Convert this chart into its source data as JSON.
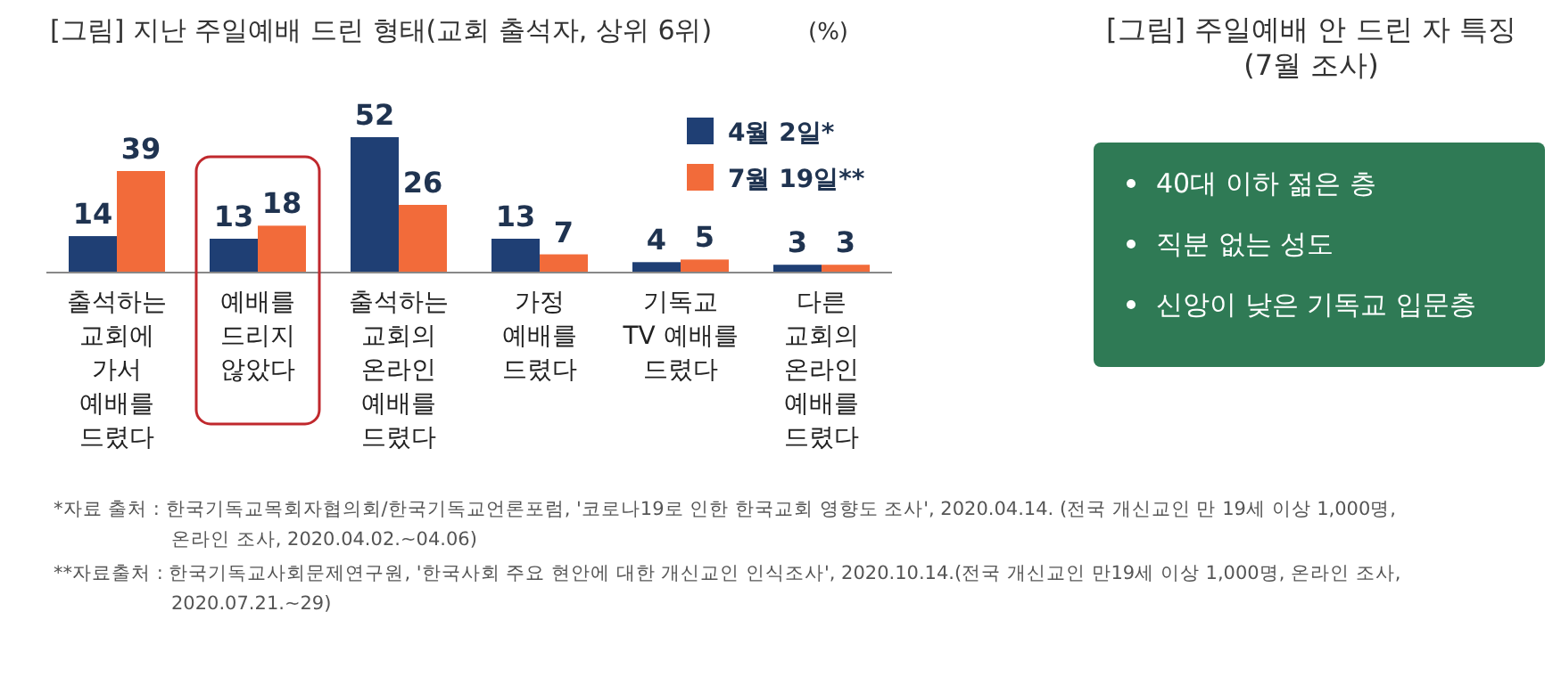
{
  "chart_data": [
    {
      "type": "bar",
      "title": "[그림] 지난 주일예배 드린 형태(교회 출석자, 상위 6위)",
      "ylabel": "(%)",
      "categories": [
        "출석하는\n교회에\n가서\n예배를\n드렸다",
        "예배를\n드리지\n않았다",
        "출석하는\n교회의\n온라인\n예배를\n드렸다",
        "가정\n예배를\n드렸다",
        "기독교\nTV 예배를\n드렸다",
        "다른\n교회의\n온라인\n예배를\n드렸다"
      ],
      "series": [
        {
          "name": "4월 2일*",
          "color": "#1f3f74",
          "values": [
            14,
            13,
            52,
            13,
            4,
            3
          ]
        },
        {
          "name": "7월 19일**",
          "color": "#f26b3a",
          "values": [
            39,
            18,
            26,
            7,
            5,
            3
          ]
        }
      ],
      "data_labels": true,
      "legend": "top right",
      "annotations": [
        "*자료 출처 : 한국기독교목회자협의회/한국기독교언론포럼, '코로나19로 인한 한국교회 영향도 조사', 2020.04.14. (전국 개신교인 만 19세 이상 1,000명,\n온라인 조사, 2020.04.02.~04.06)",
        "**자료출처 : 한국기독교사회문제연구원, '한국사회 주요 현안에 대한 개신교인 인식조사', 2020.10.14.(전국 개신교인 만19세 이상 1,000명, 온라인 조사,\n2020.07.21.~29)"
      ]
    },
    {
      "type": "other",
      "title": "[그림] 주일예배 안 드린 자 특징\n(7월 조사)",
      "annotations": [
        "40대 이하 젊은 층",
        "직분 없는 성도",
        "신앙이 낮은 기독교 입문층"
      ]
    }
  ]
}
